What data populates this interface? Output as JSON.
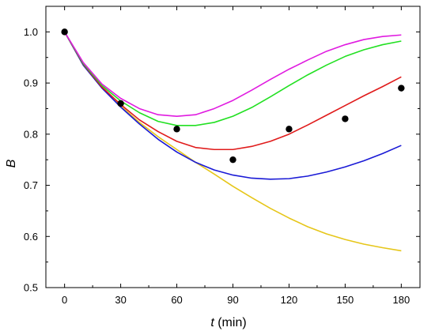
{
  "chart_data": {
    "type": "line",
    "title": "",
    "xlabel_var": "t",
    "xlabel_unit": " (min)",
    "ylabel": "B",
    "xlim": [
      -10,
      190
    ],
    "ylim": [
      0.5,
      1.05
    ],
    "x_ticks": [
      0,
      30,
      60,
      90,
      120,
      150,
      180
    ],
    "x_tick_labels": [
      "0",
      "30",
      "60",
      "90",
      "120",
      "150",
      "180"
    ],
    "y_ticks": [
      0.5,
      0.6,
      0.7,
      0.8,
      0.9,
      1.0
    ],
    "y_tick_labels": [
      "0.5",
      "0.6",
      "0.7",
      "0.8",
      "0.9",
      "1.0"
    ],
    "grid": false,
    "legend": "none",
    "points": {
      "x": [
        0,
        30,
        60,
        90,
        120,
        150,
        180
      ],
      "y": [
        1.0,
        0.86,
        0.81,
        0.75,
        0.81,
        0.83,
        0.89
      ],
      "color": "#000000"
    },
    "series": [
      {
        "color": "#e6c619",
        "x": [
          0,
          10,
          20,
          30,
          40,
          50,
          60,
          70,
          80,
          90,
          100,
          110,
          120,
          130,
          140,
          150,
          160,
          170,
          180
        ],
        "y": [
          1.0,
          0.935,
          0.89,
          0.855,
          0.823,
          0.795,
          0.77,
          0.745,
          0.722,
          0.698,
          0.676,
          0.655,
          0.636,
          0.619,
          0.605,
          0.594,
          0.585,
          0.578,
          0.572
        ]
      },
      {
        "color": "#1a1ad6",
        "x": [
          0,
          10,
          20,
          30,
          40,
          50,
          60,
          70,
          80,
          90,
          100,
          110,
          120,
          130,
          140,
          150,
          160,
          170,
          180
        ],
        "y": [
          1.0,
          0.935,
          0.89,
          0.853,
          0.82,
          0.79,
          0.765,
          0.745,
          0.73,
          0.72,
          0.714,
          0.712,
          0.713,
          0.718,
          0.726,
          0.736,
          0.748,
          0.762,
          0.778
        ]
      },
      {
        "color": "#e01b1b",
        "x": [
          0,
          10,
          20,
          30,
          40,
          50,
          60,
          70,
          80,
          90,
          100,
          110,
          120,
          130,
          140,
          150,
          160,
          170,
          180
        ],
        "y": [
          1.0,
          0.937,
          0.892,
          0.858,
          0.828,
          0.805,
          0.786,
          0.774,
          0.77,
          0.77,
          0.776,
          0.786,
          0.8,
          0.818,
          0.837,
          0.856,
          0.875,
          0.893,
          0.912
        ]
      },
      {
        "color": "#22e022",
        "x": [
          0,
          10,
          20,
          30,
          40,
          50,
          60,
          70,
          80,
          90,
          100,
          110,
          120,
          130,
          140,
          150,
          160,
          170,
          180
        ],
        "y": [
          1.0,
          0.938,
          0.895,
          0.865,
          0.842,
          0.825,
          0.817,
          0.817,
          0.823,
          0.835,
          0.852,
          0.873,
          0.895,
          0.916,
          0.935,
          0.952,
          0.965,
          0.975,
          0.982
        ]
      },
      {
        "color": "#e01be0",
        "x": [
          0,
          10,
          20,
          30,
          40,
          50,
          60,
          70,
          80,
          90,
          100,
          110,
          120,
          130,
          140,
          150,
          160,
          170,
          180
        ],
        "y": [
          1.0,
          0.94,
          0.898,
          0.87,
          0.85,
          0.838,
          0.835,
          0.838,
          0.85,
          0.866,
          0.886,
          0.907,
          0.927,
          0.945,
          0.962,
          0.975,
          0.985,
          0.991,
          0.994
        ]
      }
    ]
  }
}
